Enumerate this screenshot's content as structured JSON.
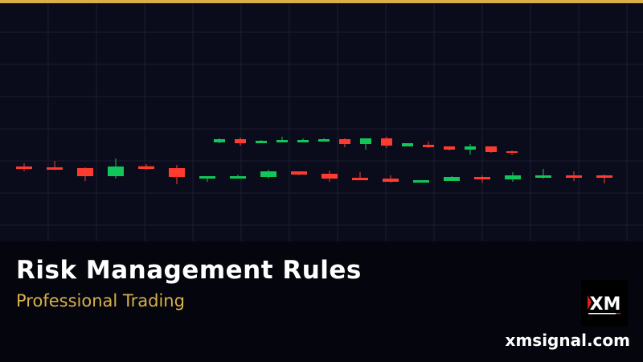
{
  "banner": {
    "title": "Risk Management Rules",
    "subtitle": "Professional Trading",
    "website": "xmsignal.com",
    "logo_text": "XM"
  },
  "colors": {
    "accent": "#d8b04a",
    "background": "#0b0c1b",
    "footer": "#05060d",
    "up": "#12c75a",
    "down": "#ff3b30",
    "grid": "#1b1d30"
  },
  "decorative_candles": {
    "lower_row": [
      {
        "o": 93,
        "h": 97,
        "l": 87,
        "c": 90
      },
      {
        "o": 92,
        "h": 100,
        "l": 89,
        "c": 89
      },
      {
        "o": 91,
        "h": 92,
        "l": 75,
        "c": 81
      },
      {
        "o": 81,
        "h": 103,
        "l": 78,
        "c": 93
      },
      {
        "o": 93.3,
        "h": 96,
        "l": 89,
        "c": 90
      },
      {
        "o": 91,
        "h": 95,
        "l": 71,
        "c": 80
      },
      {
        "o": 78,
        "h": 81,
        "l": 74,
        "c": 81
      },
      {
        "o": 78,
        "h": 83,
        "l": 78,
        "c": 81
      },
      {
        "o": 80,
        "h": 89,
        "l": 78,
        "c": 87
      },
      {
        "o": 87,
        "h": 87,
        "l": 82,
        "c": 83
      },
      {
        "o": 84,
        "h": 88,
        "l": 74,
        "c": 78
      },
      {
        "o": 79,
        "h": 86,
        "l": 76,
        "c": 76
      },
      {
        "o": 78,
        "h": 82,
        "l": 73,
        "c": 74
      },
      {
        "o": 73,
        "h": 76,
        "l": 73,
        "c": 76
      },
      {
        "o": 75,
        "h": 81,
        "l": 75,
        "c": 80
      },
      {
        "o": 80,
        "h": 82,
        "l": 73,
        "c": 77
      },
      {
        "o": 77,
        "h": 86,
        "l": 74,
        "c": 82
      },
      {
        "o": 79,
        "h": 90,
        "l": 78,
        "c": 82
      },
      {
        "o": 82,
        "h": 87,
        "l": 75,
        "c": 79
      },
      {
        "o": 82,
        "h": 83,
        "l": 72,
        "c": 79
      }
    ],
    "upper_row": [
      {
        "o": 123,
        "h": 128,
        "l": 122,
        "c": 127
      },
      {
        "o": 127,
        "h": 129,
        "l": 119,
        "c": 122
      },
      {
        "o": 122,
        "h": 126,
        "l": 122,
        "c": 125
      },
      {
        "o": 123,
        "h": 130,
        "l": 123,
        "c": 126
      },
      {
        "o": 123,
        "h": 128,
        "l": 123,
        "c": 126
      },
      {
        "o": 124,
        "h": 128,
        "l": 124,
        "c": 127
      },
      {
        "o": 127,
        "h": 128,
        "l": 117,
        "c": 121
      },
      {
        "o": 121,
        "h": 128,
        "l": 114,
        "c": 128
      },
      {
        "o": 128,
        "h": 130,
        "l": 116,
        "c": 119
      },
      {
        "o": 118,
        "h": 122,
        "l": 118,
        "c": 122
      },
      {
        "o": 120,
        "h": 124,
        "l": 116,
        "c": 117
      },
      {
        "o": 118,
        "h": 118,
        "l": 113,
        "c": 114
      },
      {
        "o": 114,
        "h": 121,
        "l": 108,
        "c": 118
      },
      {
        "o": 118,
        "h": 118,
        "l": 110,
        "c": 111
      },
      {
        "o": 112,
        "h": 113,
        "l": 107,
        "c": 110
      }
    ]
  }
}
